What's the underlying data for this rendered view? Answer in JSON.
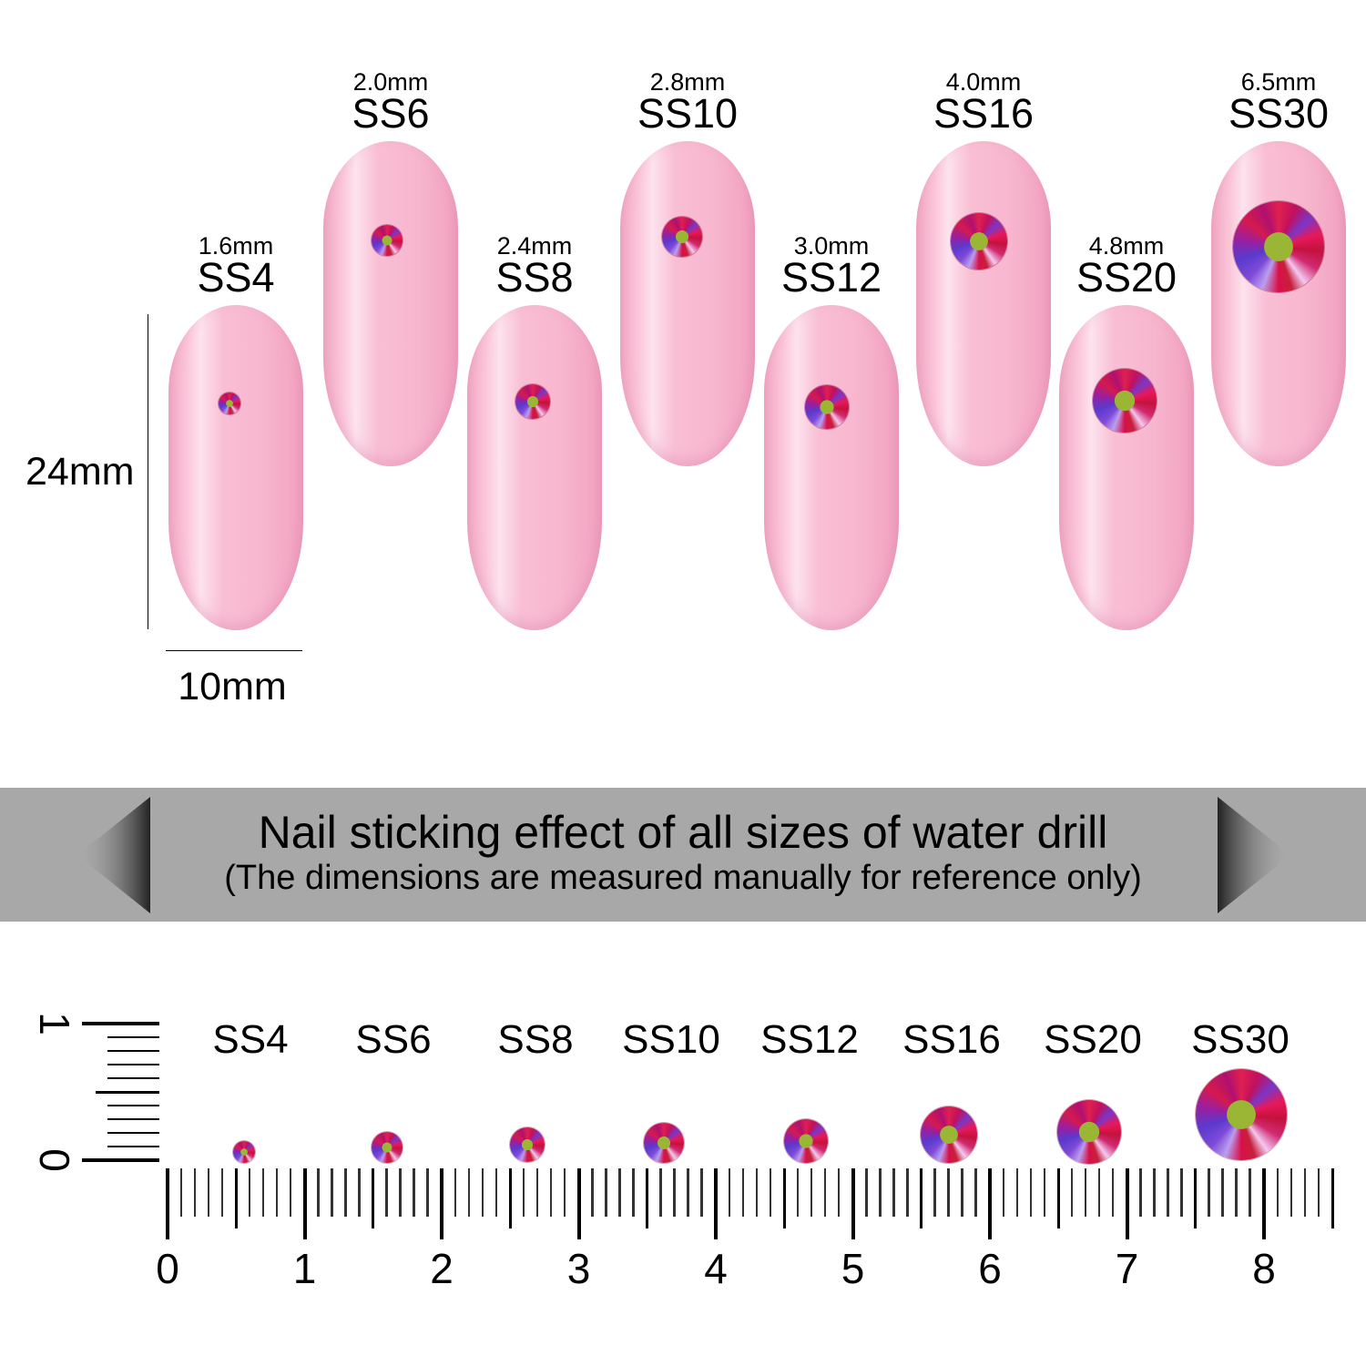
{
  "nails": [
    {
      "size": "SS4",
      "mm": "1.6mm"
    },
    {
      "size": "SS6",
      "mm": "2.0mm"
    },
    {
      "size": "SS8",
      "mm": "2.4mm"
    },
    {
      "size": "SS10",
      "mm": "2.8mm"
    },
    {
      "size": "SS12",
      "mm": "3.0mm"
    },
    {
      "size": "SS16",
      "mm": "4.0mm"
    },
    {
      "size": "SS20",
      "mm": "4.8mm"
    },
    {
      "size": "SS30",
      "mm": "6.5mm"
    }
  ],
  "dimensions": {
    "height": "24mm",
    "width": "10mm"
  },
  "banner": {
    "title": "Nail sticking effect of all sizes of water drill",
    "subtitle": "(The dimensions are measured manually for reference only)"
  },
  "ruler": {
    "labels": [
      "0",
      "1",
      "2",
      "3",
      "4",
      "5",
      "6",
      "7",
      "8"
    ],
    "vertical_labels": [
      "0",
      "1"
    ],
    "unit_subdivisions": 10
  },
  "colors": {
    "nail_pink": "#f7b6ce",
    "banner_gray": "#a8a8a8",
    "stone_red": "#d81048"
  }
}
